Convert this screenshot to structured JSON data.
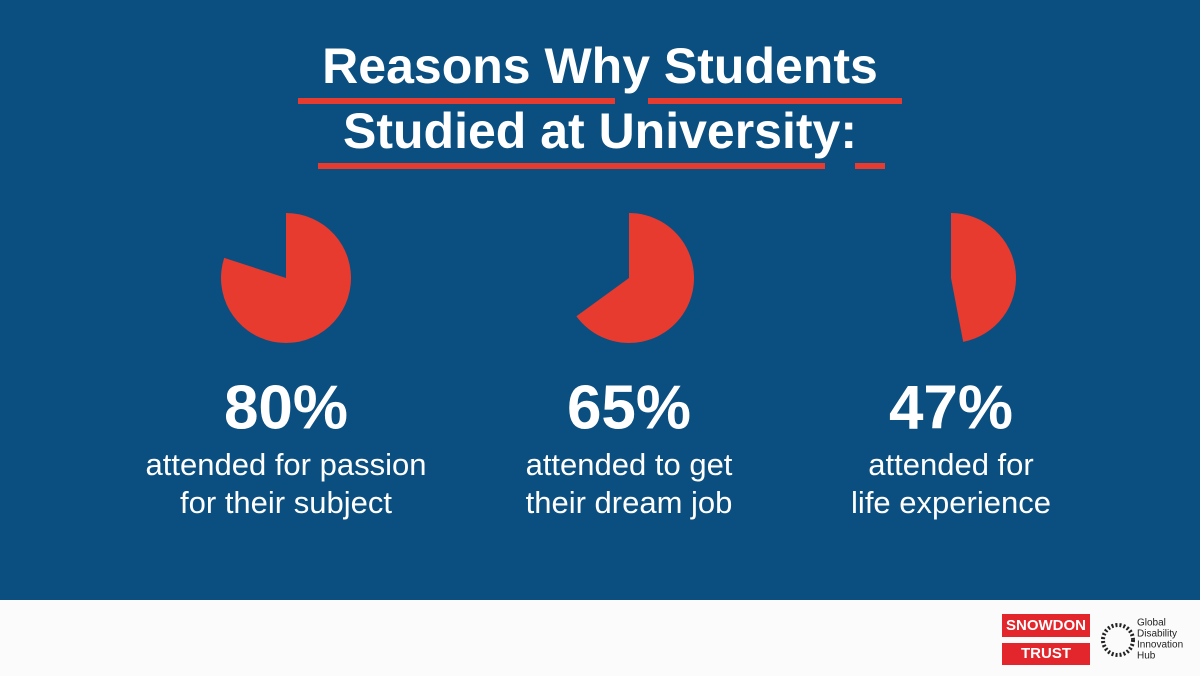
{
  "header": {
    "title_lines": [
      "Reasons Why Students",
      "Studied at University:"
    ]
  },
  "chart_data": [
    {
      "type": "pie",
      "values": [
        80
      ],
      "value_labels": [
        "80%"
      ],
      "caption": [
        "attended for passion",
        "for their subject"
      ],
      "color": "#e63b2e"
    },
    {
      "type": "pie",
      "values": [
        65
      ],
      "value_labels": [
        "65%"
      ],
      "caption": [
        "attended to get",
        "their dream job"
      ],
      "color": "#e63b2e"
    },
    {
      "type": "pie",
      "values": [
        47
      ],
      "value_labels": [
        "47%"
      ],
      "caption": [
        "attended for",
        "life experience"
      ],
      "color": "#e63b2e"
    }
  ],
  "footer": {
    "logo_1": [
      "SNOWDON",
      "TRUST"
    ],
    "logo_2": [
      "Global",
      "Disability",
      "Innovation",
      "Hub"
    ]
  }
}
